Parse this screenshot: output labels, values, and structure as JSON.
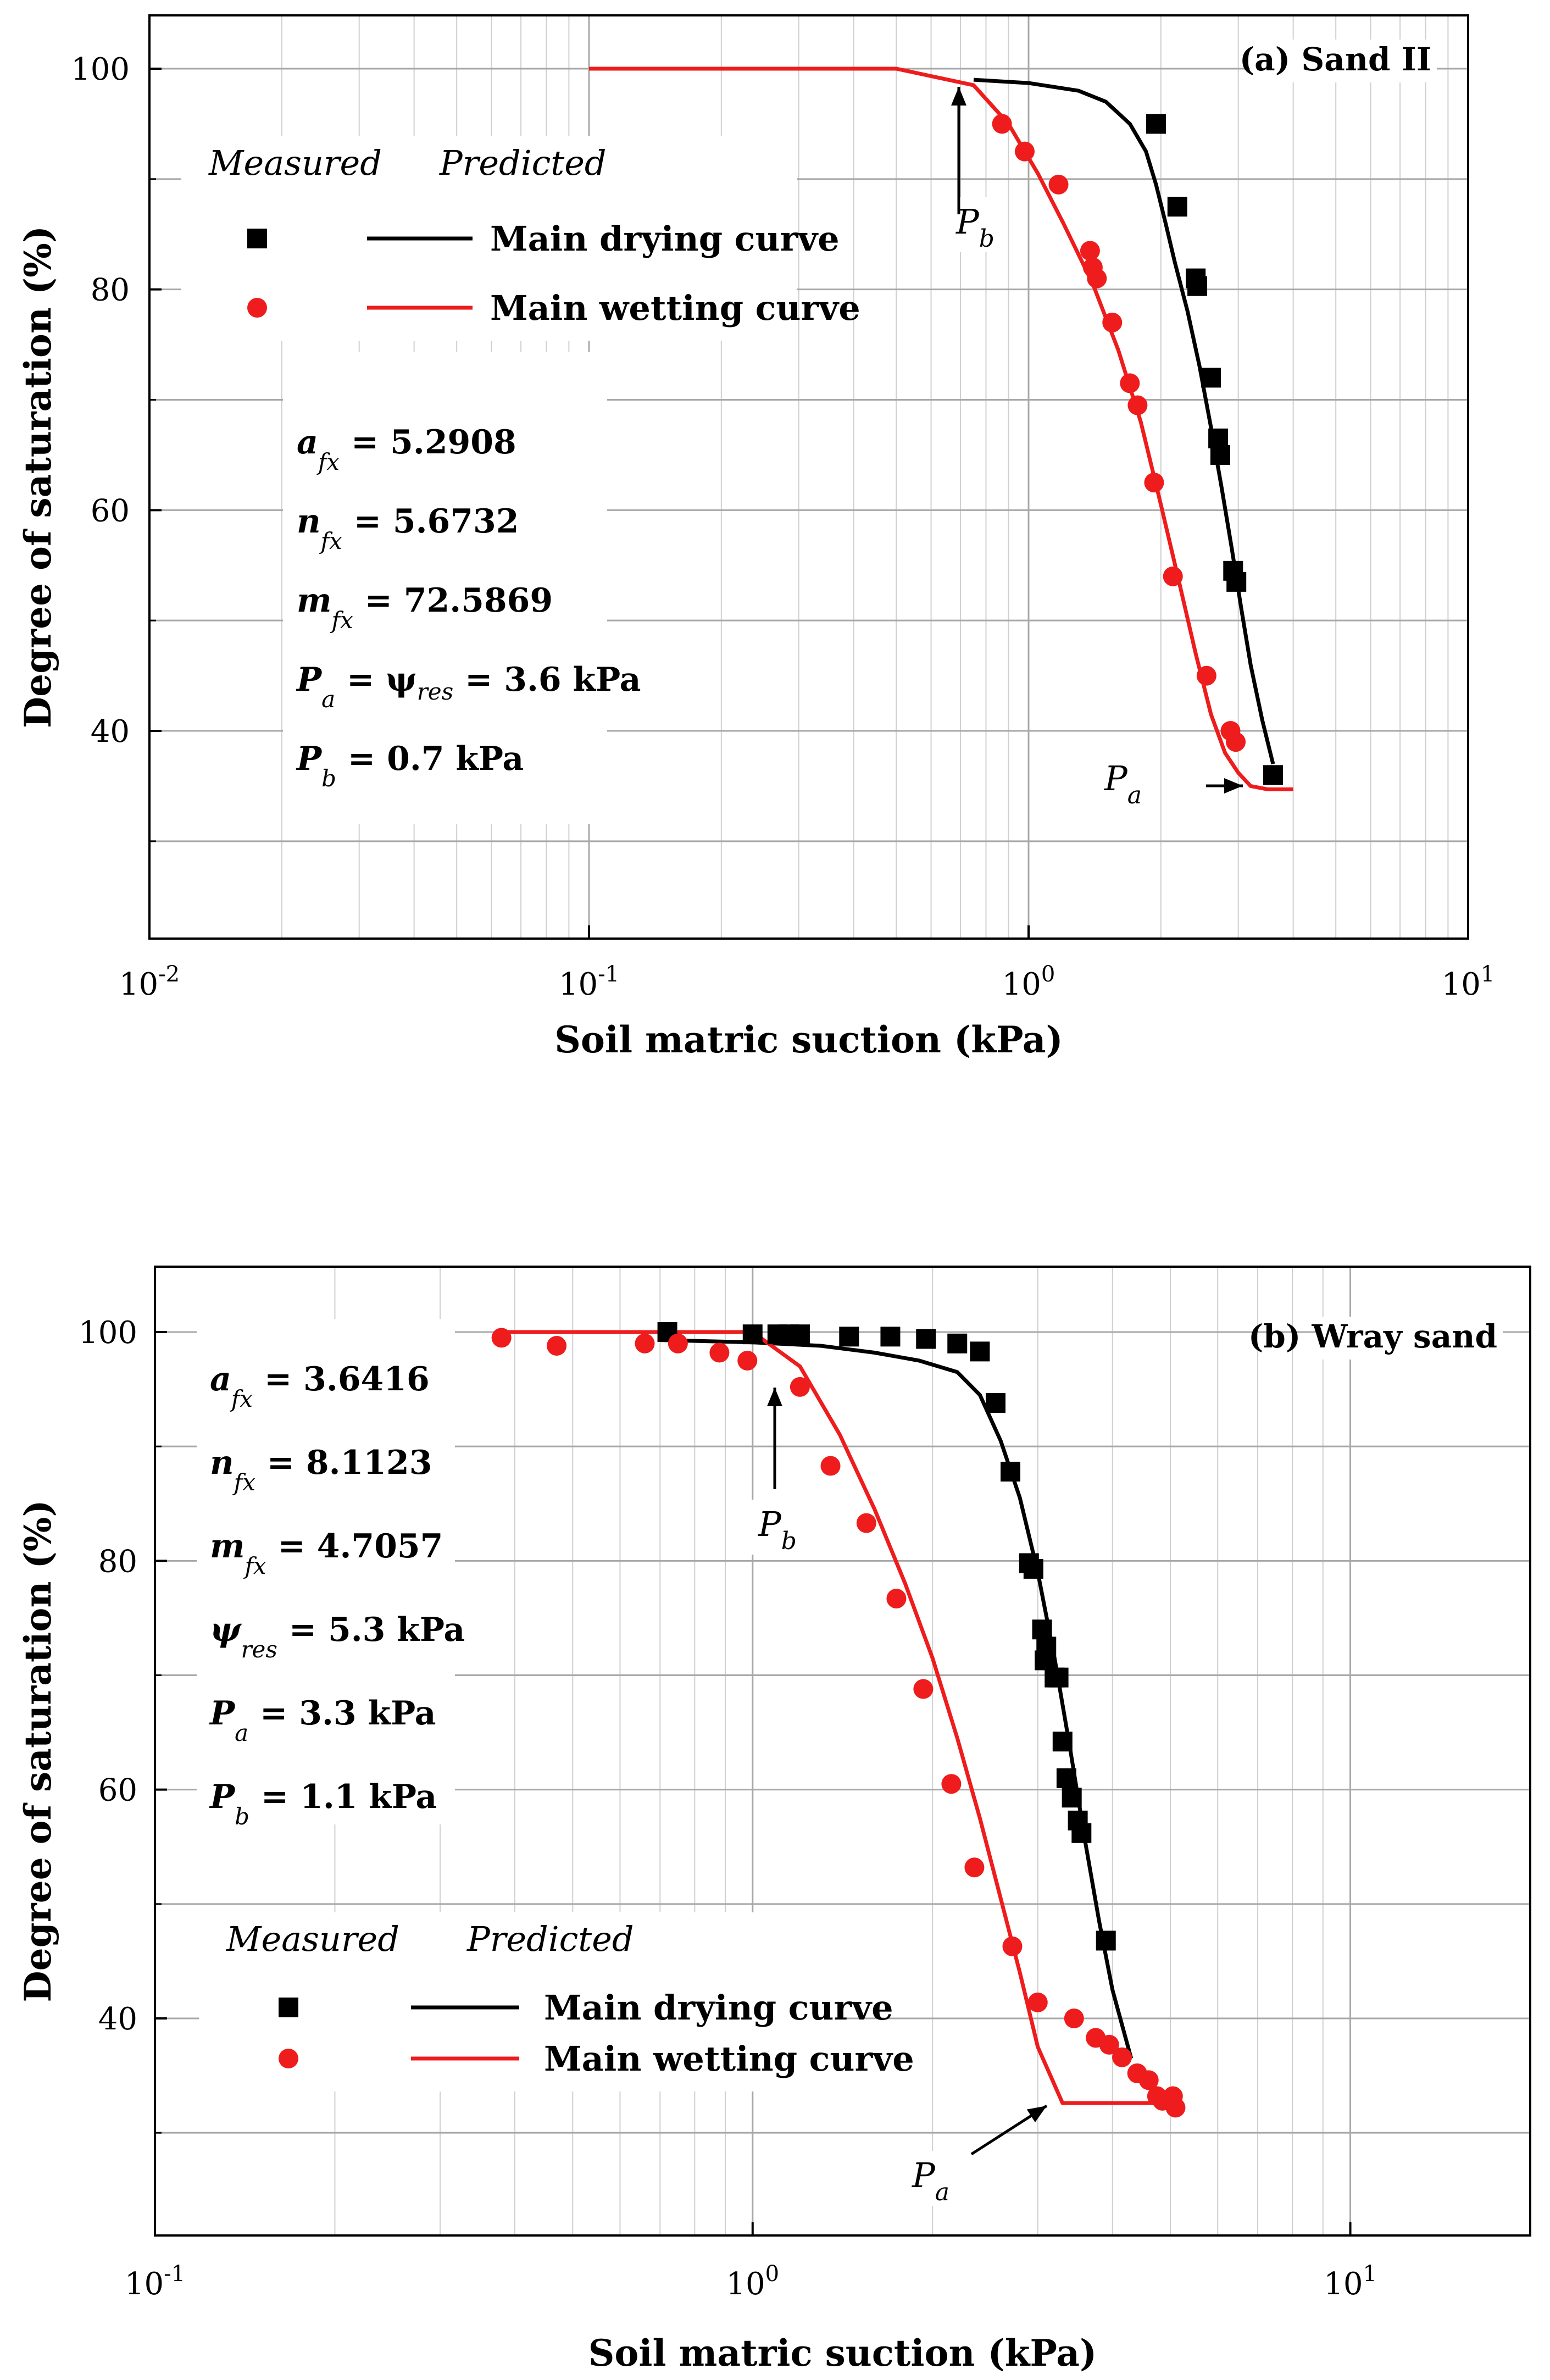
{
  "colors": {
    "drying": "#000000",
    "wetting": "#ee1c1c",
    "grid_major": "#a8a8a8",
    "grid_minor": "#cfcfcf",
    "box_bg": "#ffffff"
  },
  "chart_data": [
    {
      "type": "scatter",
      "panel_tag": "(a) Sand II",
      "xscale": "log",
      "xlim": [
        0.01,
        10
      ],
      "ylim": [
        20,
        105
      ],
      "xlabel": "Soil matric suction (kPa)",
      "ylabel": "Degree of saturation (%)",
      "x_tick_base": "10",
      "x_ticks": [
        {
          "value": 0.01,
          "exp": "-2"
        },
        {
          "value": 0.1,
          "exp": "-1"
        },
        {
          "value": 1,
          "exp": "0"
        },
        {
          "value": 10,
          "exp": "1"
        }
      ],
      "y_ticks": [
        40,
        60,
        80,
        100
      ],
      "y_grid": [
        30,
        40,
        50,
        60,
        70,
        80,
        90,
        100
      ],
      "legend": {
        "header_measured": "Measured",
        "header_predicted": "Predicted",
        "drying_label": "Main drying curve",
        "wetting_label": "Main wetting curve"
      },
      "params": [
        {
          "sym": "a",
          "sub": "fx",
          "text": " = 5.2908"
        },
        {
          "sym": "n",
          "sub": "fx",
          "text": " = 5.6732"
        },
        {
          "sym": "m",
          "sub": "fx",
          "text": " = 72.5869"
        },
        {
          "sym": "P",
          "sub": "a",
          "text": " = ψ",
          "sub2": "res",
          "text2": " = 3.6 kPa"
        },
        {
          "sym": "P",
          "sub": "b",
          "text": " = 0.7 kPa"
        }
      ],
      "annotations": [
        {
          "sym": "P",
          "sub": "b",
          "x": 0.7,
          "y": 98.5
        },
        {
          "sym": "P",
          "sub": "a",
          "x": 3.2,
          "y": 35
        }
      ],
      "series": [
        {
          "name": "Main drying curve (predicted)",
          "kind": "line",
          "color_key": "drying",
          "x": [
            0.75,
            1.0,
            1.3,
            1.5,
            1.7,
            1.85,
            1.95,
            2.05,
            2.15,
            2.3,
            2.45,
            2.6,
            2.75,
            2.9,
            3.05,
            3.2,
            3.4,
            3.6
          ],
          "y": [
            99,
            98.7,
            98,
            97,
            95,
            92.5,
            89.5,
            86,
            82.5,
            78,
            73,
            67.5,
            62,
            56.5,
            51,
            46,
            41,
            37
          ]
        },
        {
          "name": "Main wetting curve (predicted)",
          "kind": "line",
          "color_key": "wetting",
          "x": [
            0.1,
            0.5,
            0.75,
            0.9,
            1.05,
            1.2,
            1.4,
            1.6,
            1.8,
            2.0,
            2.2,
            2.4,
            2.6,
            2.8,
            3.0,
            3.2,
            3.5,
            4.0
          ],
          "y": [
            100,
            100,
            98.5,
            95,
            90.5,
            86,
            80.5,
            74.5,
            68,
            60.5,
            53.5,
            47,
            41.5,
            38,
            36.2,
            35,
            34.7,
            34.7
          ]
        },
        {
          "name": "Measured drying",
          "kind": "square",
          "color_key": "drying",
          "x": [
            1.95,
            2.18,
            2.4,
            2.42,
            2.6,
            2.7,
            2.73,
            2.92,
            2.97,
            3.6
          ],
          "y": [
            95,
            87.5,
            81,
            80.3,
            72,
            66.5,
            65,
            54.5,
            53.5,
            36
          ]
        },
        {
          "name": "Measured wetting",
          "kind": "circle",
          "color_key": "wetting",
          "x": [
            0.87,
            0.98,
            1.17,
            1.38,
            1.4,
            1.43,
            1.55,
            1.7,
            1.77,
            1.93,
            2.13,
            2.54,
            2.88,
            2.96
          ],
          "y": [
            95,
            92.5,
            89.5,
            83.5,
            82,
            81,
            77,
            71.5,
            69.5,
            62.5,
            54,
            45,
            40,
            39
          ]
        }
      ]
    },
    {
      "type": "scatter",
      "panel_tag": "(b) Wray sand",
      "xscale": "log",
      "xlim": [
        0.1,
        20
      ],
      "ylim": [
        20,
        105
      ],
      "xlabel": "Soil matric suction (kPa)",
      "ylabel": "Degree of saturation (%)",
      "x_tick_base": "10",
      "x_ticks": [
        {
          "value": 0.1,
          "exp": "-1"
        },
        {
          "value": 1,
          "exp": "0"
        },
        {
          "value": 10,
          "exp": "1"
        }
      ],
      "y_ticks": [
        40,
        60,
        80,
        100
      ],
      "y_grid": [
        30,
        40,
        50,
        60,
        70,
        80,
        90,
        100
      ],
      "legend": {
        "header_measured": "Measured",
        "header_predicted": "Predicted",
        "drying_label": "Main drying curve",
        "wetting_label": "Main wetting curve"
      },
      "params": [
        {
          "sym": "a",
          "sub": "fx",
          "text": " = 3.6416"
        },
        {
          "sym": "n",
          "sub": "fx",
          "text": " = 8.1123"
        },
        {
          "sym": "m",
          "sub": "fx",
          "text": " = 4.7057"
        },
        {
          "sym": "ψ",
          "sub": "res",
          "text": " = 5.3 kPa"
        },
        {
          "sym": "P",
          "sub": "a",
          "text": " = 3.3 kPa"
        },
        {
          "sym": "P",
          "sub": "b",
          "text": " = 1.1 kPa"
        }
      ],
      "annotations": [
        {
          "sym": "P",
          "sub": "b",
          "x": 1.1,
          "y": 98
        },
        {
          "sym": "P",
          "sub": "a",
          "x": 2.7,
          "y": 32.6
        }
      ],
      "series": [
        {
          "name": "Main drying curve (predicted)",
          "kind": "line",
          "color_key": "drying",
          "x": [
            0.7,
            1.0,
            1.3,
            1.6,
            1.9,
            2.2,
            2.4,
            2.6,
            2.8,
            3.0,
            3.2,
            3.4,
            3.6,
            3.8,
            4.0,
            4.3
          ],
          "y": [
            99.3,
            99.1,
            98.8,
            98.2,
            97.5,
            96.5,
            94.5,
            90.5,
            85.5,
            79,
            71.5,
            63.5,
            55.5,
            48.5,
            42.5,
            36.5
          ]
        },
        {
          "name": "Main wetting curve (predicted)",
          "kind": "line",
          "color_key": "wetting",
          "x": [
            0.38,
            1.0,
            1.2,
            1.4,
            1.6,
            1.8,
            2.0,
            2.2,
            2.4,
            2.6,
            2.8,
            3.0,
            3.3,
            5.0
          ],
          "y": [
            100,
            100,
            97,
            91,
            84.5,
            78,
            71.5,
            64.5,
            57.5,
            50.5,
            44,
            37.5,
            32.6,
            32.6
          ]
        },
        {
          "name": "Measured drying",
          "kind": "square",
          "color_key": "drying",
          "x": [
            0.72,
            1.0,
            1.1,
            1.15,
            1.2,
            1.45,
            1.7,
            1.95,
            2.2,
            2.4,
            2.55,
            2.7,
            2.9,
            2.95,
            3.05,
            3.1,
            3.08,
            3.2,
            3.25,
            3.3,
            3.35,
            3.42,
            3.5,
            3.55,
            3.9
          ],
          "y": [
            100,
            99.8,
            99.8,
            99.8,
            99.8,
            99.6,
            99.6,
            99.4,
            99,
            98.3,
            93.8,
            87.8,
            79.8,
            79.3,
            74,
            72.5,
            71.3,
            69.8,
            69.8,
            64.2,
            61,
            59.3,
            57.3,
            56.2,
            46.8
          ]
        },
        {
          "name": "Measured wetting",
          "kind": "circle",
          "color_key": "wetting",
          "x": [
            0.38,
            0.47,
            0.66,
            0.75,
            0.88,
            0.98,
            1.2,
            1.35,
            1.55,
            1.74,
            1.93,
            2.15,
            2.35,
            2.72,
            3.0,
            3.45,
            3.75,
            3.95,
            4.15,
            4.4,
            4.6,
            4.75,
            4.85,
            5.05,
            5.1
          ],
          "y": [
            99.5,
            98.8,
            99,
            99,
            98.2,
            97.5,
            95.2,
            88.3,
            83.3,
            76.7,
            68.8,
            60.5,
            53.2,
            46.3,
            41.4,
            40,
            38.3,
            37.7,
            36.6,
            35.2,
            34.6,
            33.2,
            32.8,
            33.2,
            32.2
          ]
        }
      ]
    }
  ]
}
